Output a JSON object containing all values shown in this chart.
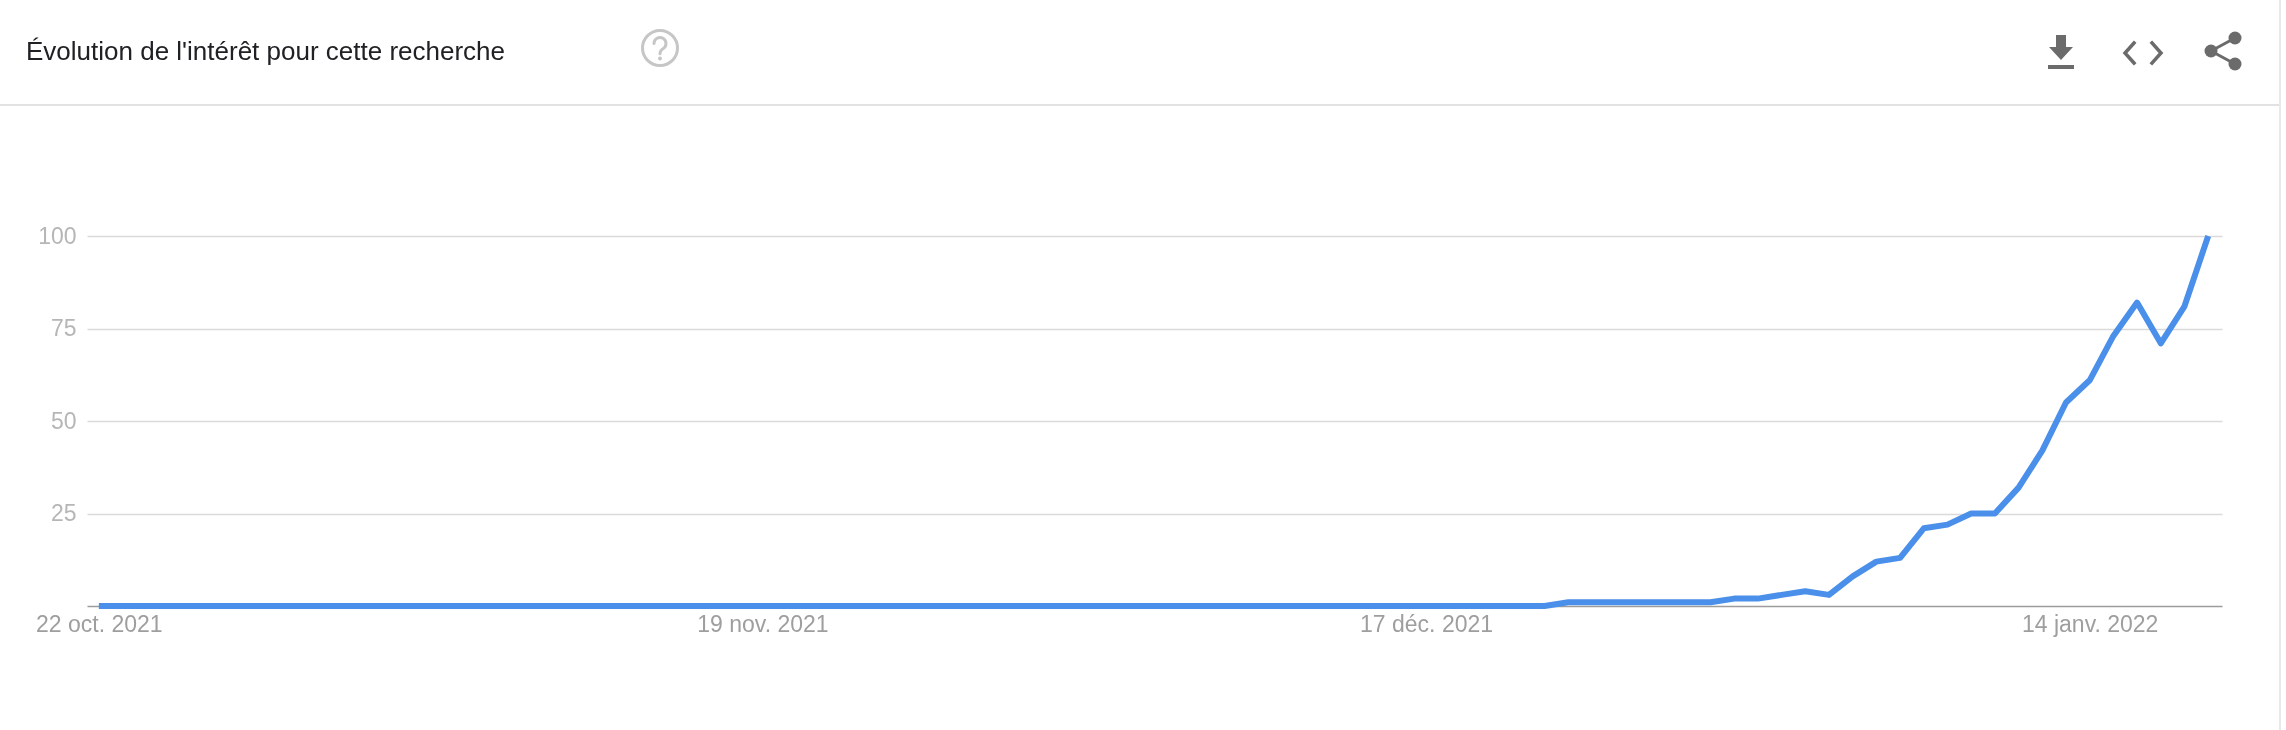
{
  "chart_data": {
    "type": "line",
    "title": "Évolution de l'intérêt pour cette recherche",
    "x": [
      "2021-10-22",
      "2021-10-23",
      "2021-10-24",
      "2021-10-25",
      "2021-10-26",
      "2021-10-27",
      "2021-10-28",
      "2021-10-29",
      "2021-10-30",
      "2021-10-31",
      "2021-11-01",
      "2021-11-02",
      "2021-11-03",
      "2021-11-04",
      "2021-11-05",
      "2021-11-06",
      "2021-11-07",
      "2021-11-08",
      "2021-11-09",
      "2021-11-10",
      "2021-11-11",
      "2021-11-12",
      "2021-11-13",
      "2021-11-14",
      "2021-11-15",
      "2021-11-16",
      "2021-11-17",
      "2021-11-18",
      "2021-11-19",
      "2021-11-20",
      "2021-11-21",
      "2021-11-22",
      "2021-11-23",
      "2021-11-24",
      "2021-11-25",
      "2021-11-26",
      "2021-11-27",
      "2021-11-28",
      "2021-11-29",
      "2021-11-30",
      "2021-12-01",
      "2021-12-02",
      "2021-12-03",
      "2021-12-04",
      "2021-12-05",
      "2021-12-06",
      "2021-12-07",
      "2021-12-08",
      "2021-12-09",
      "2021-12-10",
      "2021-12-11",
      "2021-12-12",
      "2021-12-13",
      "2021-12-14",
      "2021-12-15",
      "2021-12-16",
      "2021-12-17",
      "2021-12-18",
      "2021-12-19",
      "2021-12-20",
      "2021-12-21",
      "2021-12-22",
      "2021-12-23",
      "2021-12-24",
      "2021-12-25",
      "2021-12-26",
      "2021-12-27",
      "2021-12-28",
      "2021-12-29",
      "2021-12-30",
      "2021-12-31",
      "2022-01-01",
      "2022-01-02",
      "2022-01-03",
      "2022-01-04",
      "2022-01-05",
      "2022-01-06",
      "2022-01-07",
      "2022-01-08",
      "2022-01-09",
      "2022-01-10",
      "2022-01-11",
      "2022-01-12",
      "2022-01-13",
      "2022-01-14",
      "2022-01-15",
      "2022-01-16",
      "2022-01-17",
      "2022-01-18",
      "2022-01-19"
    ],
    "values": [
      0,
      0,
      0,
      0,
      0,
      0,
      0,
      0,
      0,
      0,
      0,
      0,
      0,
      0,
      0,
      0,
      0,
      0,
      0,
      0,
      0,
      0,
      0,
      0,
      0,
      0,
      0,
      0,
      0,
      0,
      0,
      0,
      0,
      0,
      0,
      0,
      0,
      0,
      0,
      0,
      0,
      0,
      0,
      0,
      0,
      0,
      0,
      0,
      0,
      0,
      0,
      0,
      0,
      0,
      0,
      0,
      0,
      0,
      0,
      0,
      0,
      0,
      1,
      1,
      1,
      1,
      1,
      1,
      1,
      2,
      2,
      3,
      4,
      3,
      8,
      12,
      13,
      21,
      22,
      25,
      25,
      32,
      42,
      55,
      61,
      73,
      82,
      71,
      81,
      100
    ],
    "color": "#4a8fea",
    "xlim": [
      "2021-10-21T12:00",
      "2022-01-19T14:00"
    ],
    "xticks": [
      {
        "value": "2021-10-22",
        "label": "22 oct. 2021"
      },
      {
        "value": "2021-11-19",
        "label": "19 nov. 2021"
      },
      {
        "value": "2021-12-17",
        "label": "17 déc. 2021"
      },
      {
        "value": "2022-01-14",
        "label": "14 janv. 2022"
      }
    ],
    "ylim": [
      0,
      100
    ],
    "yticks": [
      25,
      50,
      75,
      100
    ],
    "grid": "y"
  }
}
